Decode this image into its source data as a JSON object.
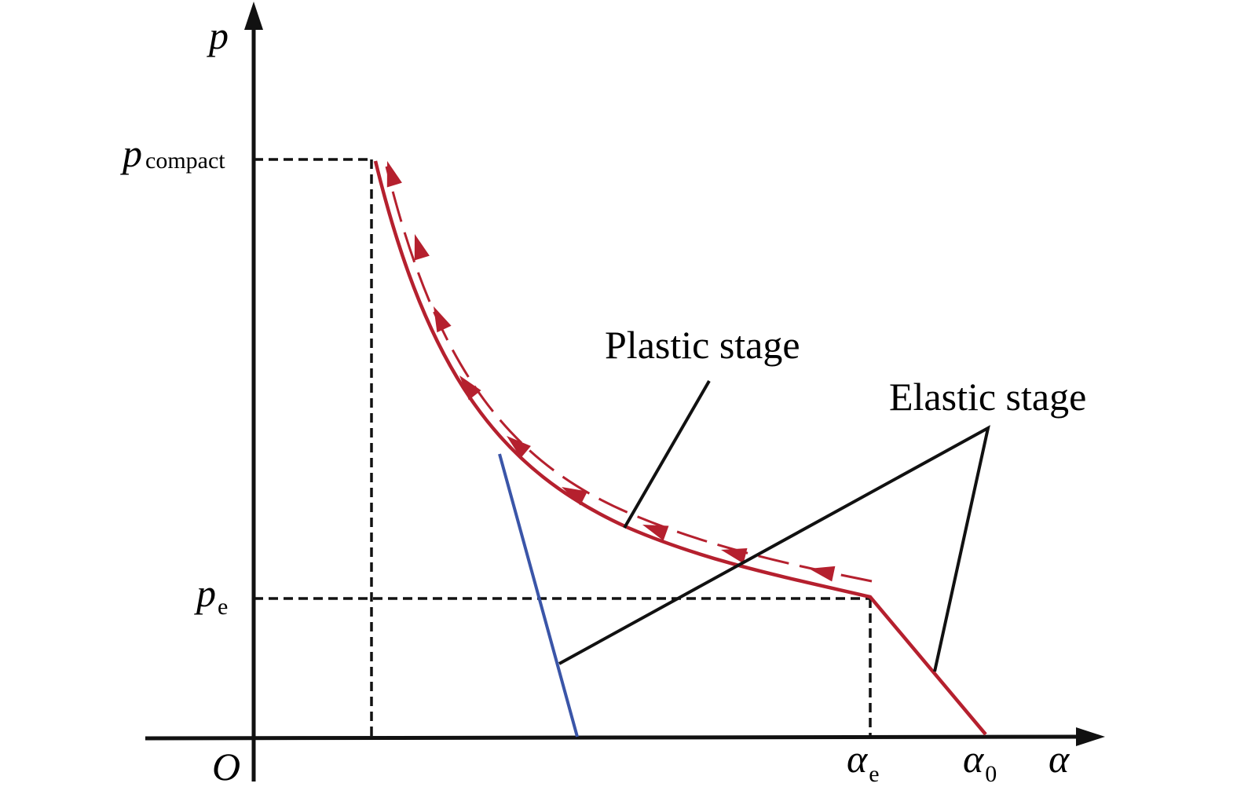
{
  "axes": {
    "y_label": "p",
    "x_label": "α",
    "origin": "O"
  },
  "y_marks": [
    {
      "symbol": "p",
      "subscript": "compact"
    },
    {
      "symbol": "p",
      "subscript": "e"
    }
  ],
  "x_marks": [
    {
      "symbol": "α",
      "subscript": "e"
    },
    {
      "symbol": "α",
      "subscript": "0"
    }
  ],
  "annotations": [
    "Plastic stage",
    "Elastic stage"
  ]
}
